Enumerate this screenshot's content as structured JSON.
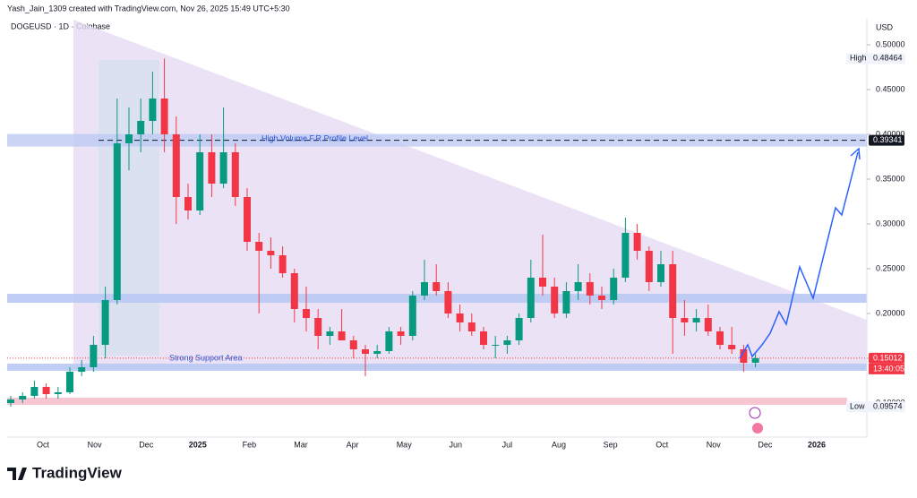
{
  "header": "Yash_Jain_1309 created with TradingView.com, Nov 26, 2025 15:49 UTC+5:30",
  "brand": "TradingView",
  "chart_data": {
    "type": "candlestick",
    "title": "DOGEUSD · 1D · Coinbase",
    "currency": "USD",
    "up_color": "#089981",
    "down_color": "#f23645",
    "ylim": [
      0.062,
      0.53
    ],
    "yticks": [
      {
        "value": 0.5,
        "label": "0.50000"
      },
      {
        "value": 0.45,
        "label": "0.45000"
      },
      {
        "value": 0.4,
        "label": "0.40000"
      },
      {
        "value": 0.35,
        "label": "0.35000"
      },
      {
        "value": 0.3,
        "label": "0.30000"
      },
      {
        "value": 0.25,
        "label": "0.25000"
      },
      {
        "value": 0.2,
        "label": "0.20000"
      },
      {
        "value": 0.15,
        "label": "0.15000"
      },
      {
        "value": 0.1,
        "label": "0.10000"
      }
    ],
    "xticks": [
      "Oct",
      "Nov",
      "Dec",
      "2025",
      "Feb",
      "Mar",
      "Apr",
      "May",
      "Jun",
      "Jul",
      "Aug",
      "Sep",
      "Oct",
      "Nov",
      "Dec",
      "2026"
    ],
    "open": [
      0.1,
      0.104,
      0.108,
      0.118,
      0.11,
      0.112,
      0.135,
      0.14,
      0.165,
      0.215,
      0.39,
      0.4,
      0.415,
      0.44,
      0.4,
      0.33,
      0.315,
      0.38,
      0.345,
      0.38,
      0.33,
      0.28,
      0.27,
      0.265,
      0.245,
      0.205,
      0.195,
      0.175,
      0.18,
      0.17,
      0.16,
      0.155,
      0.158,
      0.18,
      0.175,
      0.22,
      0.235,
      0.225,
      0.2,
      0.19,
      0.18,
      0.165,
      0.165,
      0.17,
      0.195,
      0.24,
      0.23,
      0.2,
      0.225,
      0.235,
      0.22,
      0.215,
      0.24,
      0.29,
      0.27,
      0.235,
      0.255,
      0.195,
      0.19,
      0.195,
      0.18,
      0.165,
      0.16,
      0.145
    ],
    "high": [
      0.108,
      0.112,
      0.125,
      0.122,
      0.118,
      0.14,
      0.148,
      0.175,
      0.23,
      0.44,
      0.43,
      0.44,
      0.47,
      0.48464,
      0.42,
      0.345,
      0.4,
      0.4,
      0.43,
      0.39,
      0.34,
      0.29,
      0.285,
      0.275,
      0.25,
      0.23,
      0.205,
      0.185,
      0.205,
      0.175,
      0.165,
      0.165,
      0.185,
      0.185,
      0.225,
      0.26,
      0.255,
      0.235,
      0.21,
      0.2,
      0.185,
      0.175,
      0.175,
      0.2,
      0.26,
      0.288,
      0.24,
      0.235,
      0.255,
      0.245,
      0.23,
      0.25,
      0.307,
      0.3,
      0.275,
      0.27,
      0.27,
      0.215,
      0.205,
      0.21,
      0.185,
      0.185,
      0.165,
      0.155
    ],
    "low": [
      0.096,
      0.1,
      0.105,
      0.105,
      0.105,
      0.11,
      0.13,
      0.135,
      0.15,
      0.21,
      0.36,
      0.38,
      0.4,
      0.38,
      0.3,
      0.305,
      0.31,
      0.33,
      0.34,
      0.32,
      0.27,
      0.2,
      0.25,
      0.24,
      0.19,
      0.18,
      0.16,
      0.165,
      0.17,
      0.15,
      0.13,
      0.15,
      0.155,
      0.165,
      0.17,
      0.215,
      0.22,
      0.195,
      0.18,
      0.175,
      0.16,
      0.15,
      0.155,
      0.165,
      0.19,
      0.22,
      0.195,
      0.195,
      0.215,
      0.21,
      0.205,
      0.21,
      0.235,
      0.26,
      0.225,
      0.23,
      0.155,
      0.175,
      0.18,
      0.175,
      0.16,
      0.155,
      0.135,
      0.14
    ],
    "close": [
      0.104,
      0.108,
      0.118,
      0.11,
      0.112,
      0.135,
      0.14,
      0.165,
      0.215,
      0.39,
      0.4,
      0.415,
      0.44,
      0.4,
      0.33,
      0.315,
      0.38,
      0.345,
      0.38,
      0.33,
      0.28,
      0.27,
      0.265,
      0.245,
      0.205,
      0.195,
      0.175,
      0.18,
      0.17,
      0.16,
      0.155,
      0.158,
      0.18,
      0.175,
      0.22,
      0.235,
      0.225,
      0.2,
      0.19,
      0.18,
      0.165,
      0.165,
      0.17,
      0.195,
      0.24,
      0.23,
      0.2,
      0.225,
      0.235,
      0.22,
      0.215,
      0.24,
      0.29,
      0.27,
      0.235,
      0.255,
      0.195,
      0.19,
      0.195,
      0.18,
      0.165,
      0.16,
      0.145,
      0.15012
    ],
    "high_marker": {
      "label": "High",
      "value": 0.48464
    },
    "low_marker": {
      "label": "Low",
      "value": 0.09574
    },
    "level_marker": {
      "value": 0.39341
    },
    "last_price": {
      "value": 0.15012,
      "countdown": "13:40:05"
    },
    "annotations": [
      "High Volume F.R.Profile Level",
      "Strong Support Area"
    ]
  }
}
